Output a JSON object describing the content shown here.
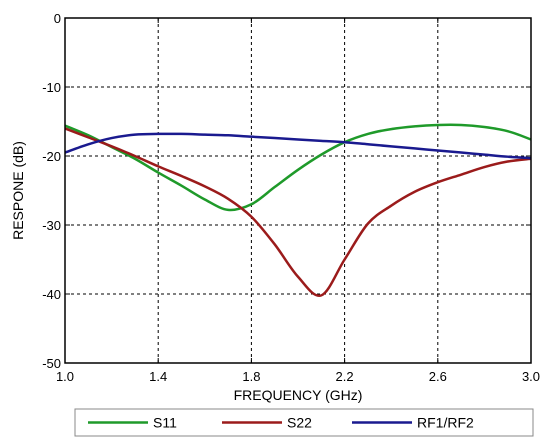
{
  "chart_data": {
    "type": "line",
    "xlabel": "FREQUENCY (GHz)",
    "ylabel": "RESPONE (dB)",
    "xlim": [
      1.0,
      3.0
    ],
    "ylim": [
      -50,
      0
    ],
    "x_ticks": [
      "1.0",
      "1.4",
      "1.8",
      "2.2",
      "2.6",
      "3.0"
    ],
    "y_ticks": [
      "0",
      "-10",
      "-20",
      "-30",
      "-40",
      "-50"
    ],
    "x_tick_values": [
      1.0,
      1.4,
      1.8,
      2.2,
      2.6,
      3.0
    ],
    "y_tick_values": [
      0,
      -10,
      -20,
      -30,
      -40,
      -50
    ],
    "grid": "dashed",
    "legend_position": "bottom",
    "series": [
      {
        "name": "S11",
        "color": "#1f9a2a",
        "x": [
          1.0,
          1.1,
          1.2,
          1.3,
          1.4,
          1.5,
          1.6,
          1.7,
          1.8,
          1.9,
          2.0,
          2.1,
          2.2,
          2.3,
          2.4,
          2.5,
          2.6,
          2.7,
          2.8,
          2.9,
          3.0
        ],
        "y": [
          -15.6,
          -17.0,
          -18.7,
          -20.4,
          -22.4,
          -24.3,
          -26.3,
          -27.8,
          -27.0,
          -24.5,
          -22.0,
          -19.8,
          -18.0,
          -16.8,
          -16.1,
          -15.7,
          -15.5,
          -15.5,
          -15.8,
          -16.4,
          -17.6
        ]
      },
      {
        "name": "S22",
        "color": "#9b1b1b",
        "x": [
          1.0,
          1.1,
          1.2,
          1.3,
          1.4,
          1.5,
          1.6,
          1.7,
          1.8,
          1.9,
          2.0,
          2.1,
          2.2,
          2.3,
          2.4,
          2.5,
          2.6,
          2.7,
          2.8,
          2.9,
          3.0
        ],
        "y": [
          -16.0,
          -17.3,
          -18.6,
          -20.0,
          -21.5,
          -22.9,
          -24.4,
          -26.2,
          -28.8,
          -32.8,
          -37.5,
          -40.2,
          -35.0,
          -29.8,
          -27.2,
          -25.2,
          -23.8,
          -22.7,
          -21.6,
          -20.8,
          -20.4
        ]
      },
      {
        "name": "RF1/RF2",
        "color": "#1a1a8f",
        "x": [
          1.0,
          1.1,
          1.2,
          1.3,
          1.4,
          1.5,
          1.6,
          1.7,
          1.8,
          1.9,
          2.0,
          2.1,
          2.2,
          2.3,
          2.4,
          2.5,
          2.6,
          2.7,
          2.8,
          2.9,
          3.0
        ],
        "y": [
          -19.5,
          -18.3,
          -17.4,
          -16.9,
          -16.8,
          -16.8,
          -16.9,
          -17.0,
          -17.2,
          -17.4,
          -17.6,
          -17.8,
          -18.0,
          -18.3,
          -18.6,
          -18.9,
          -19.2,
          -19.5,
          -19.8,
          -20.1,
          -20.3
        ]
      }
    ]
  }
}
